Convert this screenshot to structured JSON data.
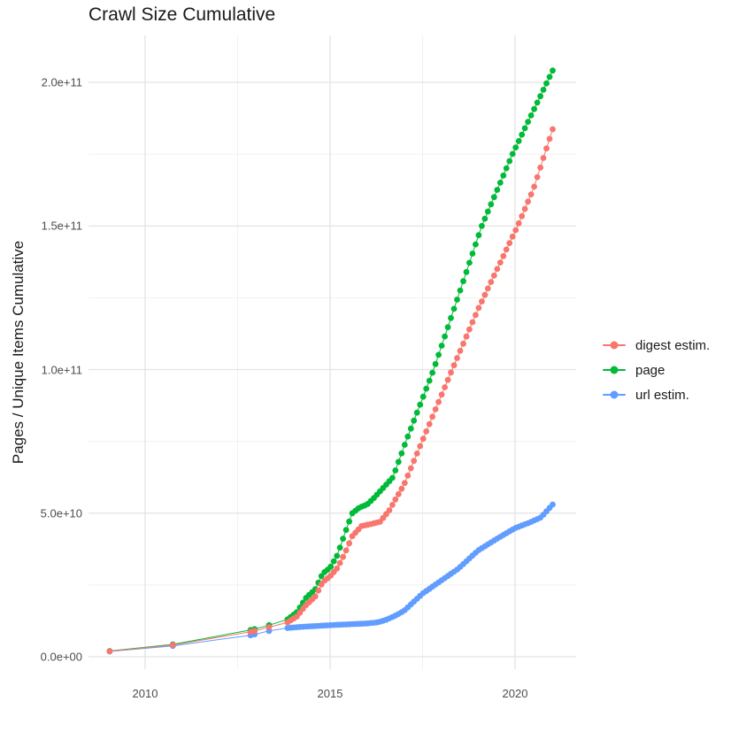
{
  "title": "Crawl Size Cumulative",
  "y_axis": {
    "label": "Pages / Unique Items Cumulative",
    "ticks": [
      {
        "label": "0.0e+00",
        "value": 0
      },
      {
        "label": "5.0e+10",
        "value": 50000000000.0
      },
      {
        "label": "1.0e+11",
        "value": 100000000000.0
      },
      {
        "label": "1.5e+11",
        "value": 150000000000.0
      },
      {
        "label": "2.0e+11",
        "value": 200000000000.0
      }
    ],
    "minor_values": [
      25000000000.0,
      75000000000.0,
      125000000000.0,
      175000000000.0
    ]
  },
  "x_axis": {
    "ticks": [
      {
        "label": "2010",
        "value": 2010
      },
      {
        "label": "2015",
        "value": 2015
      },
      {
        "label": "2020",
        "value": 2020
      }
    ],
    "minor_values": [
      2012.5,
      2017.5
    ]
  },
  "legend": {
    "items": [
      {
        "label": "digest estim.",
        "color": "#F8766D"
      },
      {
        "label": "page",
        "color": "#00BA38"
      },
      {
        "label": "url estim.",
        "color": "#619CFF"
      }
    ]
  },
  "style": {
    "grid_major_color": "#e3e3e3",
    "grid_minor_color": "#f1f1f1",
    "background": "#ffffff",
    "point_radius": 3.4
  },
  "chart_data": {
    "type": "scatter",
    "title": "Crawl Size Cumulative",
    "xlabel": "",
    "ylabel": "Pages / Unique Items Cumulative",
    "x_range": [
      2008.47,
      2021.65
    ],
    "y_range": [
      0,
      216300000000.0
    ],
    "grid": true,
    "legend_position": "right",
    "point_cadence_years": 0.08333,
    "dense_from_year": 2013.85,
    "series": [
      {
        "name": "digest estim.",
        "color": "#F8766D",
        "points": [
          [
            2009.04,
            1900000000.0
          ],
          [
            2010.75,
            4100000000.0
          ],
          [
            2012.85,
            8700000000.0
          ],
          [
            2012.96,
            9000000000.0
          ],
          [
            2013.35,
            10300000000.0
          ],
          [
            2013.85,
            12000000000.0
          ],
          [
            2014.1,
            14000000000.0
          ],
          [
            2014.35,
            18000000000.0
          ],
          [
            2014.6,
            21000000000.0
          ],
          [
            2014.8,
            26000000000.0
          ],
          [
            2015.0,
            28000000000.0
          ],
          [
            2015.2,
            31000000000.0
          ],
          [
            2015.4,
            36000000000.0
          ],
          [
            2015.6,
            42000000000.0
          ],
          [
            2015.85,
            45500000000.0
          ],
          [
            2016.1,
            46200000000.0
          ],
          [
            2016.35,
            47000000000.0
          ],
          [
            2016.6,
            51000000000.0
          ],
          [
            2017.0,
            60000000000.0
          ],
          [
            2018.3,
            100000000000.0
          ],
          [
            2019.0,
            121000000000.0
          ],
          [
            2020.07,
            150000000000.0
          ],
          [
            2020.5,
            163000000000.0
          ],
          [
            2021.05,
            185000000000.0
          ]
        ]
      },
      {
        "name": "page",
        "color": "#00BA38",
        "points": [
          [
            2009.04,
            2000000000.0
          ],
          [
            2010.75,
            4300000000.0
          ],
          [
            2012.85,
            9300000000.0
          ],
          [
            2012.96,
            9600000000.0
          ],
          [
            2013.35,
            11000000000.0
          ],
          [
            2013.85,
            13000000000.0
          ],
          [
            2014.1,
            15500000000.0
          ],
          [
            2014.35,
            20500000000.0
          ],
          [
            2014.6,
            23500000000.0
          ],
          [
            2014.8,
            29000000000.0
          ],
          [
            2015.0,
            31000000000.0
          ],
          [
            2015.2,
            35500000000.0
          ],
          [
            2015.4,
            43000000000.0
          ],
          [
            2015.6,
            50000000000.0
          ],
          [
            2015.8,
            52000000000.0
          ],
          [
            2016.0,
            53000000000.0
          ],
          [
            2016.2,
            55500000000.0
          ],
          [
            2016.45,
            59000000000.0
          ],
          [
            2016.7,
            62500000000.0
          ],
          [
            2017.05,
            75000000000.0
          ],
          [
            2017.8,
            100000000000.0
          ],
          [
            2019.1,
            150000000000.0
          ],
          [
            2019.93,
            175000000000.0
          ],
          [
            2021.05,
            205000000000.0
          ]
        ]
      },
      {
        "name": "url estim.",
        "color": "#619CFF",
        "points": [
          [
            2009.04,
            1850000000.0
          ],
          [
            2010.75,
            3800000000.0
          ],
          [
            2012.85,
            7500000000.0
          ],
          [
            2012.96,
            7800000000.0
          ],
          [
            2013.35,
            9000000000.0
          ],
          [
            2013.85,
            10000000000.0
          ],
          [
            2014.2,
            10400000000.0
          ],
          [
            2014.6,
            10700000000.0
          ],
          [
            2015.0,
            11000000000.0
          ],
          [
            2015.5,
            11300000000.0
          ],
          [
            2016.0,
            11600000000.0
          ],
          [
            2016.3,
            12000000000.0
          ],
          [
            2016.5,
            12800000000.0
          ],
          [
            2016.75,
            14200000000.0
          ],
          [
            2017.0,
            16000000000.0
          ],
          [
            2017.5,
            22000000000.0
          ],
          [
            2018.0,
            26500000000.0
          ],
          [
            2018.45,
            30500000000.0
          ],
          [
            2019.0,
            37000000000.0
          ],
          [
            2019.5,
            41000000000.0
          ],
          [
            2020.0,
            44800000000.0
          ],
          [
            2020.35,
            46500000000.0
          ],
          [
            2020.7,
            48500000000.0
          ],
          [
            2021.05,
            53500000000.0
          ]
        ]
      }
    ]
  }
}
